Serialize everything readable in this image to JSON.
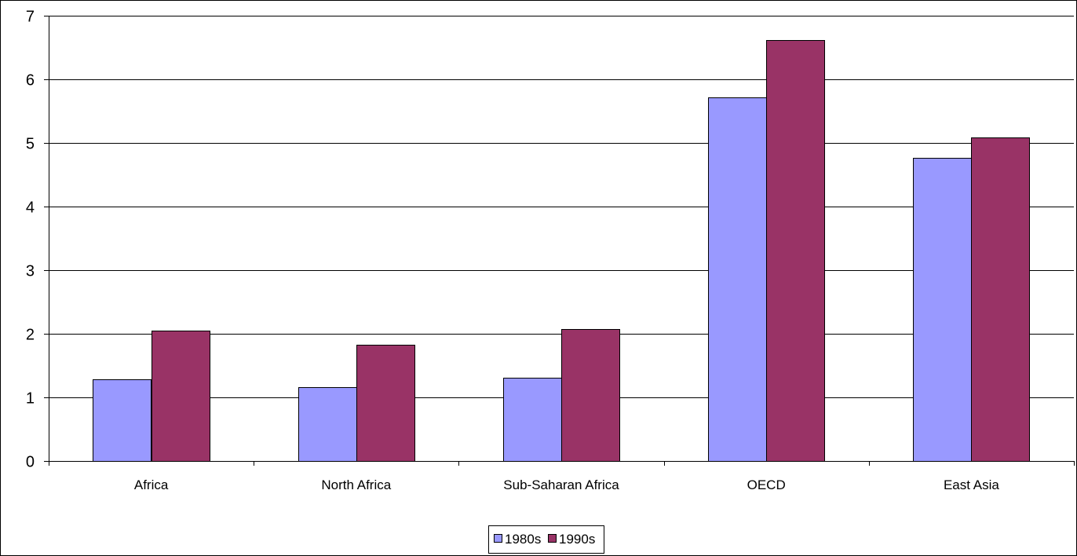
{
  "chart_data": {
    "type": "bar",
    "title": "",
    "xlabel": "",
    "ylabel": "",
    "categories": [
      "Africa",
      "North Africa",
      "Sub-Saharan Africa",
      "OECD",
      "East Asia"
    ],
    "series": [
      {
        "name": "1980s",
        "color": "#9999ff",
        "values": [
          1.28,
          1.16,
          1.31,
          5.71,
          4.77
        ]
      },
      {
        "name": "1990s",
        "color": "#993366",
        "values": [
          2.05,
          1.83,
          2.07,
          6.62,
          5.09
        ]
      }
    ],
    "ylim": [
      0,
      7
    ],
    "yticks": [
      "0",
      "1",
      "2",
      "3",
      "4",
      "5",
      "6",
      "7"
    ],
    "grid": true,
    "legend_position": "bottom-center"
  }
}
